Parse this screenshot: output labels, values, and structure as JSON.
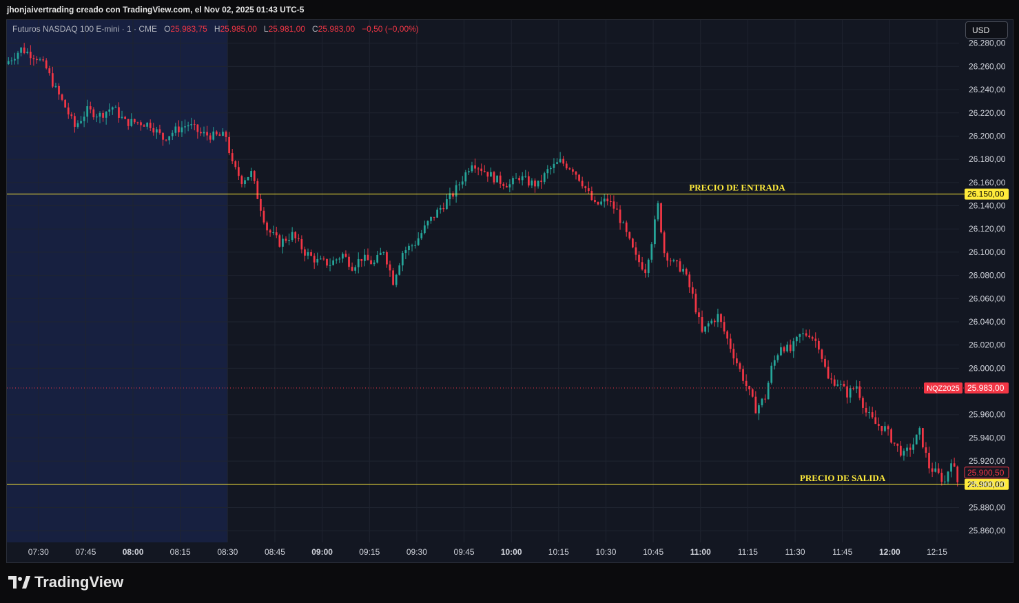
{
  "header": {
    "credit": "jhonjaivertrading creado con TradingView.com, el Nov 02, 2025 01:43 UTC-5"
  },
  "legend": {
    "symbol": "Futuros NASDAQ 100 E-mini · 1 · CME",
    "o_label": "O",
    "o_value": "25.983,75",
    "h_label": "H",
    "h_value": "25.985,00",
    "l_label": "L",
    "l_value": "25.981,00",
    "c_label": "C",
    "c_value": "25.983,00",
    "change": "−0,50 (−0,00%)"
  },
  "currency_button": "USD",
  "footer": {
    "brand": "TradingView"
  },
  "colors": {
    "background": "#131722",
    "session_shade": "#172040",
    "up": "#26a69a",
    "down": "#f23645",
    "level_line": "#ffeb3b",
    "grid": "#1f2430"
  },
  "chart_data": {
    "type": "candlestick",
    "symbol_badge": "NQZ2025",
    "ylim": [
      25850,
      26300
    ],
    "y_ticks": [
      25860,
      25880,
      25900,
      25920,
      25940,
      25960,
      26000,
      26020,
      26040,
      26060,
      26080,
      26100,
      26120,
      26140,
      26160,
      26180,
      26200,
      26220,
      26240,
      26260,
      26280
    ],
    "y_tick_labels": [
      "25.860,00",
      "25.880,00",
      "25.900,00",
      "25.920,00",
      "25.940,00",
      "25.960,00",
      "26.000,00",
      "26.020,00",
      "26.040,00",
      "26.060,00",
      "26.080,00",
      "26.100,00",
      "26.120,00",
      "26.140,00",
      "26.160,00",
      "26.180,00",
      "26.200,00",
      "26.220,00",
      "26.240,00",
      "26.260,00",
      "26.280,00"
    ],
    "x_ticks": [
      "07:30",
      "07:45",
      "08:00",
      "08:15",
      "08:30",
      "08:45",
      "09:00",
      "09:15",
      "09:30",
      "09:45",
      "10:00",
      "10:15",
      "10:30",
      "10:45",
      "11:00",
      "11:15",
      "11:30",
      "11:45",
      "12:00",
      "12:15"
    ],
    "x_tick_minutes": [
      450,
      465,
      480,
      495,
      510,
      525,
      540,
      555,
      570,
      585,
      600,
      615,
      630,
      645,
      660,
      675,
      690,
      705,
      720,
      735
    ],
    "x_range_minutes": [
      440,
      742
    ],
    "premarket_end_minute": 510,
    "levels": [
      {
        "name": "PRECIO DE ENTRADA",
        "price": 26150,
        "price_label": "26.150,00"
      },
      {
        "name": "PRECIO DE SALIDA",
        "price": 25900,
        "price_label": "25.900,00"
      }
    ],
    "last_price": 25983,
    "last_price_label": "25.983,00",
    "cursor_price_label": "25.900,50",
    "price_path": [
      [
        440,
        26262
      ],
      [
        445,
        26275
      ],
      [
        450,
        26268
      ],
      [
        453,
        26258
      ],
      [
        456,
        26240
      ],
      [
        459,
        26225
      ],
      [
        462,
        26208
      ],
      [
        466,
        26222
      ],
      [
        470,
        26218
      ],
      [
        474,
        26225
      ],
      [
        478,
        26212
      ],
      [
        482,
        26212
      ],
      [
        486,
        26210
      ],
      [
        490,
        26198
      ],
      [
        494,
        26205
      ],
      [
        498,
        26210
      ],
      [
        502,
        26202
      ],
      [
        506,
        26200
      ],
      [
        510,
        26200
      ],
      [
        512,
        26175
      ],
      [
        515,
        26162
      ],
      [
        518,
        26168
      ],
      [
        520,
        26148
      ],
      [
        523,
        26120
      ],
      [
        527,
        26108
      ],
      [
        531,
        26115
      ],
      [
        535,
        26100
      ],
      [
        539,
        26092
      ],
      [
        543,
        26090
      ],
      [
        547,
        26098
      ],
      [
        550,
        26088
      ],
      [
        553,
        26095
      ],
      [
        557,
        26090
      ],
      [
        560,
        26102
      ],
      [
        563,
        26075
      ],
      [
        566,
        26100
      ],
      [
        570,
        26108
      ],
      [
        574,
        26125
      ],
      [
        578,
        26138
      ],
      [
        582,
        26150
      ],
      [
        586,
        26168
      ],
      [
        588,
        26178
      ],
      [
        592,
        26170
      ],
      [
        596,
        26162
      ],
      [
        600,
        26158
      ],
      [
        603,
        26165
      ],
      [
        606,
        26160
      ],
      [
        609,
        26158
      ],
      [
        612,
        26170
      ],
      [
        616,
        26178
      ],
      [
        620,
        26172
      ],
      [
        623,
        26160
      ],
      [
        627,
        26140
      ],
      [
        631,
        26145
      ],
      [
        634,
        26135
      ],
      [
        637,
        26115
      ],
      [
        640,
        26095
      ],
      [
        643,
        26085
      ],
      [
        645,
        26110
      ],
      [
        647,
        26140
      ],
      [
        649,
        26100
      ],
      [
        652,
        26090
      ],
      [
        655,
        26085
      ],
      [
        658,
        26062
      ],
      [
        661,
        26030
      ],
      [
        663,
        26038
      ],
      [
        666,
        26045
      ],
      [
        669,
        26025
      ],
      [
        672,
        26005
      ],
      [
        675,
        25985
      ],
      [
        678,
        25965
      ],
      [
        681,
        25975
      ],
      [
        683,
        26000
      ],
      [
        686,
        26020
      ],
      [
        689,
        26015
      ],
      [
        692,
        26028
      ],
      [
        695,
        26030
      ],
      [
        698,
        26020
      ],
      [
        701,
        25990
      ],
      [
        704,
        25988
      ],
      [
        707,
        25978
      ],
      [
        710,
        25985
      ],
      [
        713,
        25962
      ],
      [
        716,
        25952
      ],
      [
        719,
        25948
      ],
      [
        722,
        25935
      ],
      [
        725,
        25925
      ],
      [
        728,
        25935
      ],
      [
        730,
        25945
      ],
      [
        733,
        25915
      ],
      [
        736,
        25908
      ],
      [
        738,
        25902
      ],
      [
        740,
        25922
      ],
      [
        742,
        25902
      ]
    ]
  }
}
